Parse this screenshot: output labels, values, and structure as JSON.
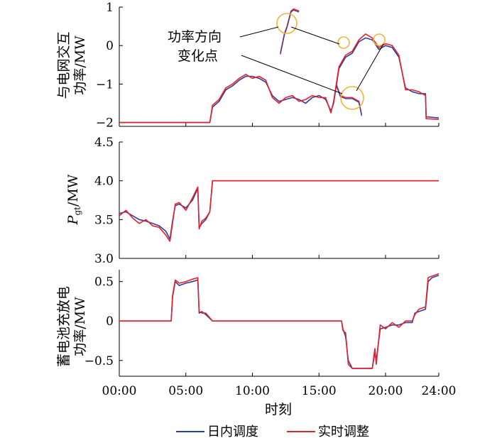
{
  "chart_data": [
    {
      "type": "line",
      "ylabel_lines": [
        "与电网交互",
        "功率/MW"
      ],
      "ylim": [
        -2.1,
        1.0
      ],
      "yticks": [
        1,
        0,
        -1,
        -2
      ],
      "ytick_labels": [
        "1",
        "0",
        "−1",
        "−2"
      ],
      "xlim": [
        0,
        24
      ],
      "series": [
        {
          "key": "dayahead",
          "x": [
            0,
            6.8,
            7.0,
            7.5,
            8.0,
            8.5,
            9.0,
            9.5,
            10.0,
            10.5,
            11.0,
            11.5,
            12.0,
            12.5,
            13.0,
            13.5,
            14.0,
            14.5,
            15.0,
            15.5,
            15.9,
            16.1,
            16.5,
            17.0,
            17.5,
            18.0,
            18.5,
            19.0,
            19.5,
            20.0,
            20.5,
            21.0,
            21.5,
            22.0,
            22.5,
            23.0,
            23.05,
            24.0
          ],
          "y": [
            -2.0,
            -2.0,
            -1.6,
            -1.45,
            -1.15,
            -1.05,
            -0.9,
            -0.8,
            -0.8,
            -0.85,
            -0.95,
            -1.3,
            -1.45,
            -1.4,
            -1.35,
            -1.4,
            -1.5,
            -1.35,
            -1.3,
            -1.4,
            -1.7,
            -1.5,
            -0.6,
            -0.3,
            -0.2,
            0.1,
            0.2,
            0.15,
            -0.1,
            0.0,
            -0.05,
            -0.3,
            -1.1,
            -1.2,
            -1.25,
            -1.25,
            -1.85,
            -1.88
          ]
        },
        {
          "key": "realtime",
          "x": [
            0,
            6.8,
            7.0,
            7.5,
            8.0,
            8.5,
            9.0,
            9.5,
            10.0,
            10.5,
            11.0,
            11.5,
            12.0,
            12.5,
            13.0,
            13.5,
            14.0,
            14.5,
            15.0,
            15.5,
            15.9,
            16.1,
            16.5,
            17.0,
            17.5,
            18.0,
            18.5,
            19.0,
            19.5,
            20.0,
            20.5,
            21.0,
            21.5,
            22.0,
            22.5,
            23.0,
            23.05,
            24.0
          ],
          "y": [
            -2.0,
            -2.0,
            -1.55,
            -1.4,
            -1.1,
            -1.0,
            -0.85,
            -0.75,
            -0.85,
            -0.8,
            -0.9,
            -1.35,
            -1.5,
            -1.35,
            -1.3,
            -1.45,
            -1.4,
            -1.3,
            -1.35,
            -1.35,
            -1.75,
            -1.45,
            -0.55,
            -0.25,
            -0.15,
            0.15,
            0.3,
            0.2,
            -0.05,
            0.05,
            0.0,
            -0.25,
            -1.15,
            -1.15,
            -1.2,
            -1.3,
            -1.9,
            -1.92
          ]
        }
      ],
      "annotation": {
        "lines": [
          "功率方向",
          "变化点"
        ],
        "insets": [
          {
            "x": [
              12.1,
              12.4,
              12.6,
              12.9,
              13.1,
              13.5
            ],
            "y": [
              -0.2,
              0.3,
              0.5,
              0.9,
              0.95,
              0.9
            ]
          },
          {
            "x": [
              16.3,
              16.6,
              17.0,
              17.5,
              18.0,
              18.2
            ],
            "y": [
              -1.0,
              -1.3,
              -1.35,
              -1.35,
              -1.45,
              -1.8
            ]
          }
        ]
      }
    },
    {
      "type": "line",
      "ylabel_main": "P",
      "ylabel_sub": "gt",
      "ylabel_unit": "/MW",
      "ylim": [
        3.0,
        4.5
      ],
      "yticks": [
        4.5,
        4.0,
        3.5,
        3.0
      ],
      "ytick_labels": [
        "4.5",
        "4.0",
        "3.5",
        "3.0"
      ],
      "xlim": [
        0,
        24
      ],
      "series": [
        {
          "key": "dayahead",
          "x": [
            0,
            0.5,
            1.0,
            1.5,
            2.0,
            2.5,
            3.0,
            3.5,
            3.8,
            4.0,
            4.2,
            4.5,
            5.0,
            5.5,
            5.9,
            6.0,
            6.2,
            6.5,
            6.8,
            7.0,
            24.0
          ],
          "y": [
            3.58,
            3.6,
            3.55,
            3.5,
            3.48,
            3.45,
            3.42,
            3.35,
            3.25,
            3.48,
            3.68,
            3.7,
            3.65,
            3.75,
            3.9,
            3.4,
            3.45,
            3.5,
            3.6,
            4.0,
            4.0
          ]
        },
        {
          "key": "realtime",
          "x": [
            0,
            0.5,
            1.0,
            1.5,
            2.0,
            2.5,
            3.0,
            3.5,
            3.8,
            4.0,
            4.2,
            4.5,
            5.0,
            5.5,
            5.9,
            6.0,
            6.2,
            6.5,
            6.8,
            7.0,
            24.0
          ],
          "y": [
            3.55,
            3.62,
            3.52,
            3.45,
            3.5,
            3.42,
            3.4,
            3.3,
            3.22,
            3.45,
            3.7,
            3.72,
            3.62,
            3.78,
            3.92,
            3.38,
            3.48,
            3.52,
            3.6,
            4.0,
            4.0
          ]
        }
      ]
    },
    {
      "type": "line",
      "ylabel_lines": [
        "蓄电池充放电",
        "功率/MW"
      ],
      "ylim": [
        -0.7,
        0.65
      ],
      "yticks": [
        0.5,
        0,
        -0.5
      ],
      "ytick_labels": [
        "0.5",
        "0",
        "−0.5"
      ],
      "xlim": [
        0,
        24
      ],
      "xticks": [
        0,
        5,
        10,
        15,
        20,
        24
      ],
      "xtick_labels": [
        "00:00",
        "05:00",
        "10:00",
        "15:00",
        "20:00",
        "24:00"
      ],
      "xlabel": "时刻",
      "series": [
        {
          "key": "dayahead",
          "x": [
            0,
            3.9,
            4.0,
            4.2,
            4.5,
            5.0,
            5.5,
            5.9,
            6.0,
            6.2,
            6.5,
            7.0,
            16.7,
            16.8,
            17.0,
            17.2,
            17.5,
            18.0,
            18.5,
            19.0,
            19.2,
            19.3,
            19.6,
            20.0,
            20.5,
            21.0,
            21.5,
            22.0,
            22.2,
            22.5,
            23.0,
            23.2,
            23.5,
            24.0
          ],
          "y": [
            0,
            0,
            0.3,
            0.5,
            0.45,
            0.48,
            0.5,
            0.52,
            0.1,
            0.12,
            0.08,
            0,
            0,
            -0.1,
            -0.2,
            -0.5,
            -0.6,
            -0.6,
            -0.6,
            -0.6,
            -0.4,
            -0.5,
            -0.1,
            -0.08,
            -0.05,
            -0.05,
            -0.02,
            -0.02,
            0.1,
            0.12,
            0.15,
            0.5,
            0.55,
            0.58
          ]
        },
        {
          "key": "realtime",
          "x": [
            0,
            3.9,
            4.0,
            4.2,
            4.5,
            5.0,
            5.5,
            5.9,
            6.0,
            6.2,
            6.5,
            7.0,
            16.7,
            16.8,
            17.0,
            17.2,
            17.5,
            18.0,
            18.5,
            19.0,
            19.2,
            19.3,
            19.6,
            20.0,
            20.5,
            21.0,
            21.5,
            22.0,
            22.2,
            22.5,
            23.0,
            23.2,
            23.5,
            24.0
          ],
          "y": [
            0,
            0,
            0.32,
            0.52,
            0.48,
            0.5,
            0.53,
            0.55,
            0.12,
            0.1,
            0.1,
            0,
            0,
            -0.12,
            -0.15,
            -0.55,
            -0.6,
            -0.6,
            -0.6,
            -0.6,
            -0.35,
            -0.55,
            -0.05,
            -0.1,
            -0.02,
            -0.08,
            0.0,
            0.0,
            0.08,
            0.15,
            0.18,
            0.55,
            0.57,
            0.6
          ]
        }
      ]
    }
  ],
  "legend": [
    {
      "key": "dayahead",
      "label": "日内调度",
      "color": "#2a3f9f"
    },
    {
      "key": "realtime",
      "label": "实时调整",
      "color": "#e8202a"
    }
  ],
  "annotation_color": "#f0b43a"
}
